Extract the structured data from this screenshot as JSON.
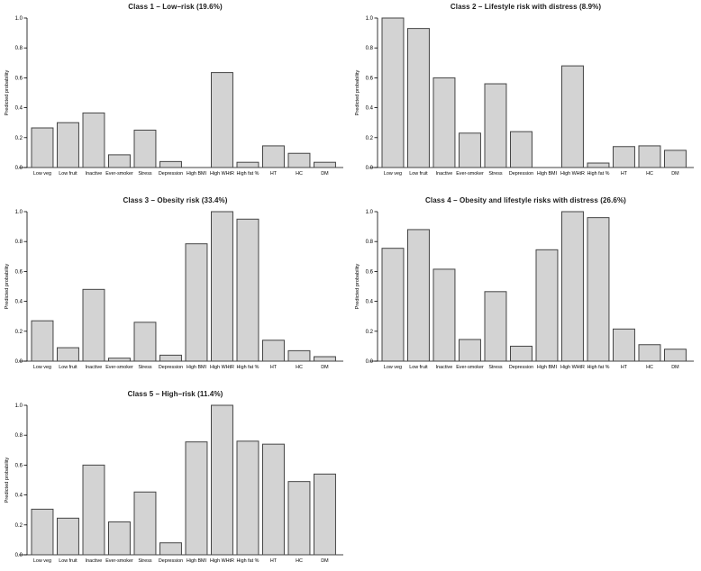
{
  "figure": {
    "background": "#ffffff",
    "bar_fill": "#d3d3d3",
    "bar_stroke": "#454545",
    "axis_color": "#000000"
  },
  "chart_data": [
    {
      "type": "bar",
      "title": "Class 1 – Low–risk (19.6%)",
      "ylabel": "Predicted probability",
      "xlabel": "",
      "ylim": [
        0,
        1
      ],
      "yticks": [
        "0.0",
        "0.2",
        "0.4",
        "0.6",
        "0.8",
        "1.0"
      ],
      "grid": false,
      "categories": [
        "Low veg",
        "Low fruit",
        "Inactive",
        "Ever-smoker",
        "Stress",
        "Depression",
        "High BMI",
        "High WHtR",
        "High fat %",
        "HT",
        "HC",
        "DM"
      ],
      "values": [
        0.265,
        0.3,
        0.365,
        0.085,
        0.25,
        0.04,
        0.0,
        0.635,
        0.035,
        0.145,
        0.095,
        0.035
      ]
    },
    {
      "type": "bar",
      "title": "Class 2 – Lifestyle risk with distress (8.9%)",
      "ylabel": "Predicted probability",
      "xlabel": "",
      "ylim": [
        0,
        1
      ],
      "yticks": [
        "0.0",
        "0.2",
        "0.4",
        "0.6",
        "0.8",
        "1.0"
      ],
      "grid": false,
      "categories": [
        "Low veg",
        "Low fruit",
        "Inactive",
        "Ever-smoker",
        "Stress",
        "Depression",
        "High BMI",
        "High WHtR",
        "High fat %",
        "HT",
        "HC",
        "DM"
      ],
      "values": [
        1.0,
        0.93,
        0.6,
        0.23,
        0.56,
        0.24,
        0.0,
        0.68,
        0.03,
        0.14,
        0.145,
        0.115
      ]
    },
    {
      "type": "bar",
      "title": "Class 3 – Obesity risk (33.4%)",
      "ylabel": "Predicted probability",
      "xlabel": "",
      "ylim": [
        0,
        1
      ],
      "yticks": [
        "0.0",
        "0.2",
        "0.4",
        "0.6",
        "0.8",
        "1.0"
      ],
      "grid": false,
      "categories": [
        "Low veg",
        "Low fruit",
        "Inactive",
        "Ever-smoker",
        "Stress",
        "Depression",
        "High BMI",
        "High WHtR",
        "High fat %",
        "HT",
        "HC",
        "DM"
      ],
      "values": [
        0.27,
        0.09,
        0.48,
        0.02,
        0.26,
        0.04,
        0.785,
        1.0,
        0.95,
        0.14,
        0.07,
        0.03
      ]
    },
    {
      "type": "bar",
      "title": "Class 4 – Obesity and lifestyle risks with distress (26.6%)",
      "ylabel": "Predicted probability",
      "xlabel": "",
      "ylim": [
        0,
        1
      ],
      "yticks": [
        "0.0",
        "0.2",
        "0.4",
        "0.6",
        "0.8",
        "1.0"
      ],
      "grid": false,
      "categories": [
        "Low veg",
        "Low fruit",
        "Inactive",
        "Ever-smoker",
        "Stress",
        "Depression",
        "High BMI",
        "High WHtR",
        "High fat %",
        "HT",
        "HC",
        "DM"
      ],
      "values": [
        0.755,
        0.88,
        0.615,
        0.145,
        0.465,
        0.1,
        0.745,
        1.0,
        0.96,
        0.215,
        0.11,
        0.08
      ]
    },
    {
      "type": "bar",
      "title": "Class 5 – High–risk (11.4%)",
      "ylabel": "Predicted probability",
      "xlabel": "",
      "ylim": [
        0,
        1
      ],
      "yticks": [
        "0.0",
        "0.2",
        "0.4",
        "0.6",
        "0.8",
        "1.0"
      ],
      "grid": false,
      "categories": [
        "Low veg",
        "Low fruit",
        "Inactive",
        "Ever-smoker",
        "Stress",
        "Depression",
        "High BMI",
        "High WHtR",
        "High fat %",
        "HT",
        "HC",
        "DM"
      ],
      "values": [
        0.305,
        0.245,
        0.6,
        0.22,
        0.42,
        0.08,
        0.755,
        1.0,
        0.76,
        0.74,
        0.49,
        0.54
      ]
    }
  ]
}
